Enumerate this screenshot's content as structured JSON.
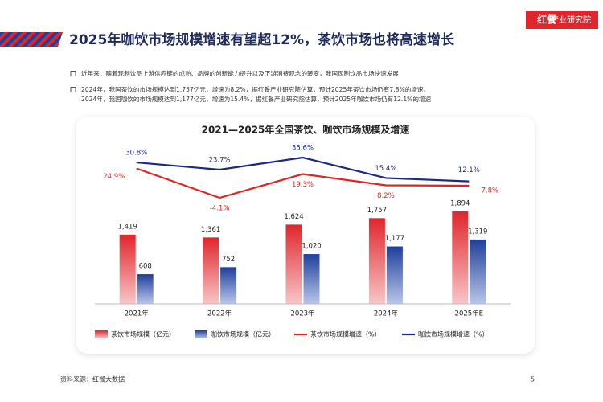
{
  "header": {
    "title": "2025年咖饮市场规模增速有望超12%，茶饮市场也将高速增长",
    "logo_main": "红餐",
    "logo_sub": "产业研究院"
  },
  "bullets": [
    "近年来，随着现制饮品上游供应链的成熟、品牌的创新能力提升以及下游消费观念的转变，我国现制饮品市场快速发展",
    "2024年，我国茶饮的市场规模达到1,757亿元，增速为8.2%，据红餐产业研究院估算，预计2025年茶饮市场仍有7.8%的增速。",
    "2024年，我国咖饮的市场规模达到1,177亿元，增速为15.4%，据红餐产业研究院估算，预计2025年咖饮市场仍有12.1%的增速"
  ],
  "chart_data": {
    "type": "bar",
    "title": "2021—2025年全国茶饮、咖饮市场规模及增速",
    "categories": [
      "2021年",
      "2022年",
      "2023年",
      "2024年",
      "2025年E"
    ],
    "series": [
      {
        "name": "茶饮市场规模（亿元）",
        "type": "bar",
        "color": "#e0262c",
        "values": [
          1419,
          1361,
          1624,
          1757,
          1894
        ],
        "value_labels": [
          "1,419",
          "1,361",
          "1,624",
          "1,757",
          "1,894"
        ]
      },
      {
        "name": "咖饮市场规模（亿元）",
        "type": "bar",
        "color": "#1f3f9a",
        "values": [
          608,
          752,
          1020,
          1177,
          1319
        ],
        "value_labels": [
          "608",
          "752",
          "1,020",
          "1,177",
          "1,319"
        ]
      },
      {
        "name": "茶饮市场规模增速（%）",
        "type": "line",
        "axis": "y2",
        "color": "#e02424",
        "values": [
          24.9,
          -4.1,
          19.3,
          8.2,
          7.8
        ],
        "value_labels": [
          "24.9%",
          "-4.1%",
          "19.3%",
          "8.2%",
          "7.8%"
        ]
      },
      {
        "name": "咖饮市场规模增速（%）",
        "type": "line",
        "axis": "y2",
        "color": "#1a2a80",
        "values": [
          30.8,
          23.7,
          35.6,
          15.4,
          12.1
        ],
        "value_labels": [
          "30.8%",
          "23.7%",
          "35.6%",
          "15.4%",
          "12.1%"
        ]
      }
    ]
  },
  "footer": {
    "source": "资料来源：红餐大数据",
    "page": "5"
  }
}
